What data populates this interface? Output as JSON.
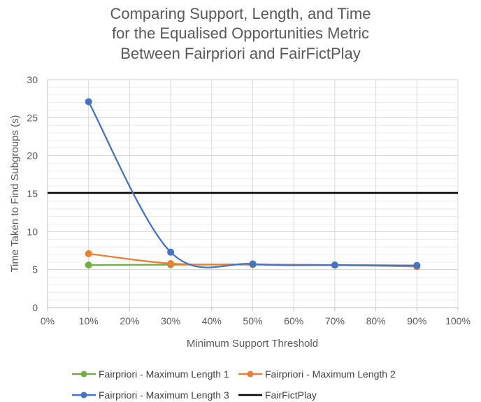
{
  "chart_data": {
    "type": "line",
    "title_lines": [
      "Comparing Support, Length, and Time",
      "for the Equalised Opportunities Metric",
      "Between Fairpriori and FairFictPlay"
    ],
    "xlabel": "Minimum Support Threshold",
    "ylabel": "Time Taken to Find Subgroups (s)",
    "x_ticks": [
      0,
      0.1,
      0.2,
      0.3,
      0.4,
      0.5,
      0.6,
      0.7,
      0.8,
      0.9,
      1.0
    ],
    "x_tick_labels": [
      "0%",
      "10%",
      "20%",
      "30%",
      "40%",
      "50%",
      "60%",
      "70%",
      "80%",
      "90%",
      "100%"
    ],
    "xlim": [
      0,
      1.0
    ],
    "y_ticks": [
      0,
      5,
      10,
      15,
      20,
      25,
      30
    ],
    "y_tick_labels": [
      "0",
      "5",
      "10",
      "15",
      "20",
      "25",
      "30"
    ],
    "ylim": [
      0,
      30
    ],
    "grid": true,
    "legend_position": "bottom",
    "series": [
      {
        "name": "Fairpriori - Maximum Length 1",
        "color": "#70ad47",
        "x": [
          0.1,
          0.3,
          0.5,
          0.7,
          0.9
        ],
        "y": [
          5.6,
          5.65,
          5.65,
          5.6,
          5.55
        ],
        "smooth": true,
        "markers": true
      },
      {
        "name": "Fairpriori - Maximum Length 2",
        "color": "#ed7d31",
        "x": [
          0.1,
          0.3,
          0.5,
          0.7,
          0.9
        ],
        "y": [
          7.1,
          5.8,
          5.7,
          5.6,
          5.4
        ],
        "smooth": true,
        "markers": true
      },
      {
        "name": "Fairpriori - Maximum Length 3",
        "color": "#4472c4",
        "x": [
          0.1,
          0.3,
          0.5,
          0.7,
          0.9
        ],
        "y": [
          27.1,
          7.3,
          5.75,
          5.6,
          5.55
        ],
        "smooth": true,
        "markers": true
      },
      {
        "name": "FairFictPlay",
        "color": "#000000",
        "x": [
          0,
          1.0
        ],
        "y": [
          15.1,
          15.1
        ],
        "smooth": false,
        "markers": false
      }
    ]
  }
}
